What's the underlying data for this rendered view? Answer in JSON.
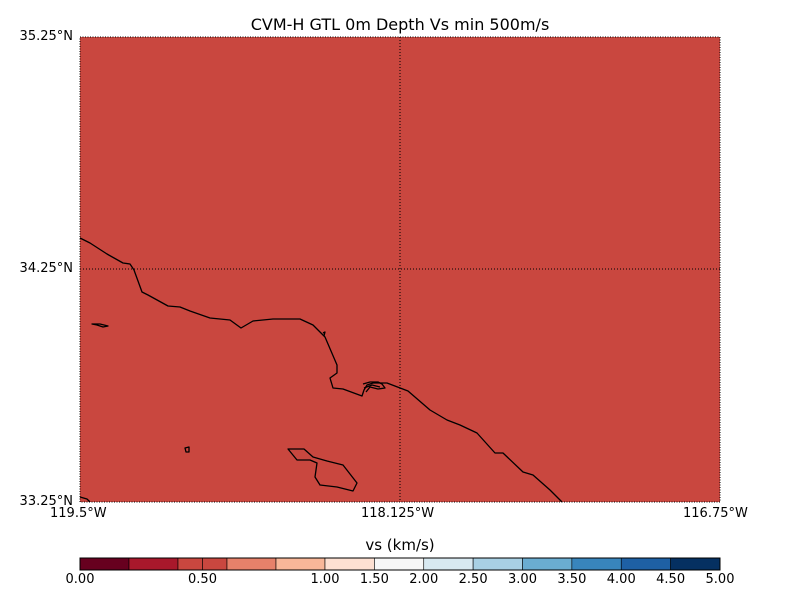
{
  "title": "CVM-H GTL 0m Depth Vs min 500m/s",
  "map": {
    "lon_range": [
      -119.5,
      -116.75
    ],
    "lat_range": [
      33.25,
      35.25
    ],
    "fill_color": "#c9473f",
    "fill_value_km_s": 0.5,
    "lat_labels": [
      "35.25°N",
      "34.25°N",
      "33.25°N"
    ],
    "lon_labels": [
      "119.5°W",
      "118.125°W",
      "116.75°W"
    ],
    "gridlines": "dotted"
  },
  "colorbar": {
    "label": "vs (km/s)",
    "boundaries": [
      0,
      0.2,
      0.4,
      0.5,
      0.6,
      0.8,
      1.0,
      1.5,
      2.0,
      2.5,
      3.0,
      3.5,
      4.0,
      4.5,
      5.0
    ],
    "colors": [
      "#67001f",
      "#a8182b",
      "#c9473f",
      "#c9473f",
      "#e6816a",
      "#f8b799",
      "#fde0d2",
      "#f7f7f7",
      "#d8e9f1",
      "#a8d0e4",
      "#6aadd1",
      "#3885bc",
      "#1e60a4",
      "#053061"
    ],
    "tick_labels": [
      {
        "value": 0.0,
        "text": "0.00"
      },
      {
        "value": 0.5,
        "text": "0.50"
      },
      {
        "value": 1.0,
        "text": "1.00"
      },
      {
        "value": 1.5,
        "text": "1.50"
      },
      {
        "value": 2.0,
        "text": "2.00"
      },
      {
        "value": 2.5,
        "text": "2.50"
      },
      {
        "value": 3.0,
        "text": "3.00"
      },
      {
        "value": 3.5,
        "text": "3.50"
      },
      {
        "value": 4.0,
        "text": "4.00"
      },
      {
        "value": 4.5,
        "text": "4.50"
      },
      {
        "value": 5.0,
        "text": "5.00"
      }
    ]
  }
}
